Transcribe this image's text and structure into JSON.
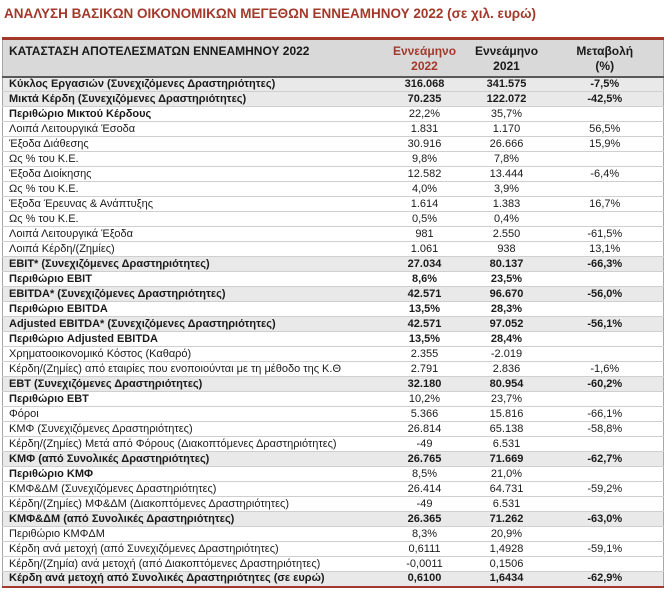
{
  "title": "ΑΝΑΛΥΣΗ ΒΑΣΙΚΩΝ ΟΙΚΟΝΟΜΙΚΩΝ ΜΕΓΕΘΩΝ ΕΝΝΕΑΜΗΝΟΥ 2022 (σε χιλ. ευρώ)",
  "colors": {
    "accent_red": "#A2392A",
    "header_bg": "#D9D9D9",
    "shaded_row_bg": "#E9E9E9"
  },
  "table": {
    "header": {
      "label": "ΚΑΤΑΣΤΑΣΗ ΑΠΟΤΕΛΕΣΜΑΤΩΝ  ΕΝΝΕΑΜΗΝΟΥ 2022",
      "col_2022_line1": "Εννεάμηνο",
      "col_2022_line2": "2022",
      "col_2021_line1": "Εννεάμηνο",
      "col_2021_line2": "2021",
      "col_change_line1": "Μεταβολή",
      "col_change_line2": "(%)"
    },
    "rows": [
      {
        "label": "Κύκλος Εργασιών (Συνεχιζόμενες Δραστηριότητες)",
        "y2022": "316.068",
        "y2021": "341.575",
        "change": "-7,5%",
        "bold_label": true,
        "bold_values": true,
        "shaded": true
      },
      {
        "label": "Μικτά Κέρδη (Συνεχιζόμενες Δραστηριότητες)",
        "y2022": "70.235",
        "y2021": "122.072",
        "change": "-42,5%",
        "bold_label": true,
        "bold_values": true,
        "shaded": true
      },
      {
        "label": "Περιθώριο Μικτού Κέρδους",
        "y2022": "22,2%",
        "y2021": "35,7%",
        "change": "",
        "bold_label": true,
        "bold_values": false,
        "shaded": false
      },
      {
        "label": "Λοιπά Λειτουργικά Έσοδα",
        "y2022": "1.831",
        "y2021": "1.170",
        "change": "56,5%",
        "bold_label": false,
        "bold_values": false,
        "shaded": false
      },
      {
        "label": "Έξοδα Διάθεσης",
        "y2022": "30.916",
        "y2021": "26.666",
        "change": "15,9%",
        "bold_label": false,
        "bold_values": false,
        "shaded": false
      },
      {
        "label": "Ως % του Κ.Ε.",
        "y2022": "9,8%",
        "y2021": "7,8%",
        "change": "",
        "bold_label": false,
        "bold_values": false,
        "shaded": false
      },
      {
        "label": "Έξοδα Διοίκησης",
        "y2022": "12.582",
        "y2021": "13.444",
        "change": "-6,4%",
        "bold_label": false,
        "bold_values": false,
        "shaded": false
      },
      {
        "label": "Ως % του Κ.Ε.",
        "y2022": "4,0%",
        "y2021": "3,9%",
        "change": "",
        "bold_label": false,
        "bold_values": false,
        "shaded": false
      },
      {
        "label": "Έξοδα Έρευνας & Ανάπτυξης",
        "y2022": "1.614",
        "y2021": "1.383",
        "change": "16,7%",
        "bold_label": false,
        "bold_values": false,
        "shaded": false
      },
      {
        "label": "Ως % του Κ.Ε.",
        "y2022": "0,5%",
        "y2021": "0,4%",
        "change": "",
        "bold_label": false,
        "bold_values": false,
        "shaded": false
      },
      {
        "label": "Λοιπά Λειτουργικά Έξοδα",
        "y2022": "981",
        "y2021": "2.550",
        "change": "-61,5%",
        "bold_label": false,
        "bold_values": false,
        "shaded": false
      },
      {
        "label": "Λοιπά Κέρδη/(Ζημίες)",
        "y2022": "1.061",
        "y2021": "938",
        "change": "13,1%",
        "bold_label": false,
        "bold_values": false,
        "shaded": false
      },
      {
        "label": "EBIT* (Συνεχιζόμενες Δραστηριότητες)",
        "y2022": "27.034",
        "y2021": "80.137",
        "change": "-66,3%",
        "bold_label": true,
        "bold_values": true,
        "shaded": true
      },
      {
        "label": "Περιθώριο EBIT",
        "y2022": "8,6%",
        "y2021": "23,5%",
        "change": "",
        "bold_label": true,
        "bold_values": true,
        "shaded": false
      },
      {
        "label": "EBITDA* (Συνεχιζόμενες Δραστηριότητες)",
        "y2022": "42.571",
        "y2021": "96.670",
        "change": "-56,0%",
        "bold_label": true,
        "bold_values": true,
        "shaded": true
      },
      {
        "label": "Περιθώριο EBITDA",
        "y2022": "13,5%",
        "y2021": "28,3%",
        "change": "",
        "bold_label": true,
        "bold_values": true,
        "shaded": false
      },
      {
        "label": "Adjusted EBITDA* (Συνεχιζόμενες Δραστηριότητες)",
        "y2022": "42.571",
        "y2021": "97.052",
        "change": "-56,1%",
        "bold_label": true,
        "bold_values": true,
        "shaded": true
      },
      {
        "label": "Περιθώριο Adjusted EBITDA",
        "y2022": "13,5%",
        "y2021": "28,4%",
        "change": "",
        "bold_label": true,
        "bold_values": true,
        "shaded": false
      },
      {
        "label": "Χρηματοοικονομικό Κόστος (Καθαρό)",
        "y2022": "2.355",
        "y2021": "-2.019",
        "change": "",
        "bold_label": false,
        "bold_values": false,
        "shaded": false
      },
      {
        "label": "Κέρδη/(Ζημίες) από εταιρίες που ενοποιούνται με τη μέθοδο της Κ.Θ",
        "y2022": "2.791",
        "y2021": "2.836",
        "change": "-1,6%",
        "bold_label": false,
        "bold_values": false,
        "shaded": false
      },
      {
        "label": "EBT (Συνεχιζόμενες Δραστηριότητες)",
        "y2022": "32.180",
        "y2021": "80.954",
        "change": "-60,2%",
        "bold_label": true,
        "bold_values": true,
        "shaded": true
      },
      {
        "label": "Περιθώριο EBT",
        "y2022": "10,2%",
        "y2021": "23,7%",
        "change": "",
        "bold_label": true,
        "bold_values": false,
        "shaded": false
      },
      {
        "label": "Φόροι",
        "y2022": "5.366",
        "y2021": "15.816",
        "change": "-66,1%",
        "bold_label": false,
        "bold_values": false,
        "shaded": false
      },
      {
        "label": "ΚΜΦ (Συνεχιζόμενες Δραστηριότητες)",
        "y2022": "26.814",
        "y2021": "65.138",
        "change": "-58,8%",
        "bold_label": false,
        "bold_values": false,
        "shaded": false
      },
      {
        "label": "Κέρδη/(Ζημίες) Μετά από Φόρους (Διακοπτόμενες Δραστηριότητες)",
        "y2022": "-49",
        "y2021": "6.531",
        "change": "",
        "bold_label": false,
        "bold_values": false,
        "shaded": false
      },
      {
        "label": "ΚΜΦ (από Συνολικές Δραστηριότητες)",
        "y2022": "26.765",
        "y2021": "71.669",
        "change": "-62,7%",
        "bold_label": true,
        "bold_values": true,
        "shaded": true
      },
      {
        "label": "Περιθώριο ΚΜΦ",
        "y2022": "8,5%",
        "y2021": "21,0%",
        "change": "",
        "bold_label": true,
        "bold_values": false,
        "shaded": false
      },
      {
        "label": "ΚΜΦ&ΔΜ (Συνεχιζόμενες Δραστηριότητες)",
        "y2022": "26.414",
        "y2021": "64.731",
        "change": "-59,2%",
        "bold_label": false,
        "bold_values": false,
        "shaded": false
      },
      {
        "label": "Κέρδη/(Ζημίες) ΜΦ&ΔΜ (Διακοπτόμενες Δραστηριότητες)",
        "y2022": "-49",
        "y2021": "6.531",
        "change": "",
        "bold_label": false,
        "bold_values": false,
        "shaded": false
      },
      {
        "label": "ΚΜΦ&ΔΜ (από Συνολικές Δραστηριότητες)",
        "y2022": "26.365",
        "y2021": "71.262",
        "change": "-63,0%",
        "bold_label": true,
        "bold_values": true,
        "shaded": true
      },
      {
        "label": "Περιθώριο ΚΜΦΔΜ",
        "y2022": "8,3%",
        "y2021": "20,9%",
        "change": "",
        "bold_label": false,
        "bold_values": false,
        "shaded": false
      },
      {
        "label": "Κέρδη ανά μετοχή (από Συνεχιζόμενες Δραστηριότητες)",
        "y2022": "0,6111",
        "y2021": "1,4928",
        "change": "-59,1%",
        "bold_label": false,
        "bold_values": false,
        "shaded": false
      },
      {
        "label": "Κέρδη/(Ζημία) ανά μετοχή (από Διακοπτόμενες Δραστηριότητες)",
        "y2022": "-0,0011",
        "y2021": "0,1506",
        "change": "",
        "bold_label": false,
        "bold_values": false,
        "shaded": false
      },
      {
        "label": "Κέρδη ανά μετοχή από Συνολικές Δραστηριότητες (σε ευρώ)",
        "y2022": "0,6100",
        "y2021": "1,6434",
        "change": "-62,9%",
        "bold_label": true,
        "bold_values": true,
        "shaded": true
      }
    ]
  }
}
